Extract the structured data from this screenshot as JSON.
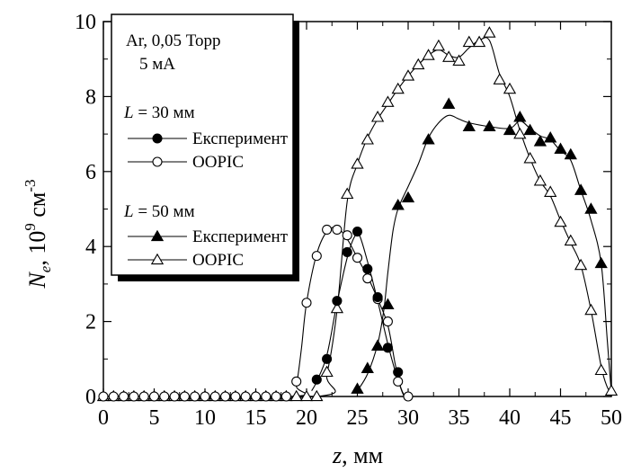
{
  "chart_data": {
    "type": "scatter",
    "xlabel": {
      "main": "z",
      "unit": ", мм"
    },
    "ylabel": {
      "main": "N",
      "sub": "e",
      "mid": ", 10",
      "sup1": "9",
      "unit": " см",
      "sup2": "-3"
    },
    "xlim": [
      0,
      50
    ],
    "ylim": [
      0,
      10
    ],
    "x_ticks": [
      0,
      5,
      10,
      15,
      20,
      25,
      30,
      35,
      40,
      45,
      50
    ],
    "y_ticks": [
      0,
      2,
      4,
      6,
      8,
      10
    ],
    "grid": false,
    "legend": {
      "placement": "top-left",
      "header_line1": "Ar, 0,05 Торр",
      "header_line2": "5 мА",
      "groups": [
        {
          "label_var": "L",
          "label_rest": " = 30 мм"
        },
        {
          "label_var": "L",
          "label_rest": " = 50 мм"
        }
      ],
      "entries": [
        {
          "name": "Експеримент",
          "marker": "circle",
          "filled": true,
          "group": 0
        },
        {
          "name": "OOPIC",
          "marker": "circle",
          "filled": false,
          "group": 0
        },
        {
          "name": "Експеримент",
          "marker": "triangle",
          "filled": true,
          "group": 1
        },
        {
          "name": "OOPIC",
          "marker": "triangle",
          "filled": false,
          "group": 1
        }
      ]
    },
    "series": [
      {
        "name": "Експеримент",
        "marker": "circle",
        "filled": true,
        "points": [
          [
            21,
            0.45
          ],
          [
            22,
            1.0
          ],
          [
            23,
            2.55
          ],
          [
            24,
            3.85
          ],
          [
            25,
            4.4
          ],
          [
            26,
            3.4
          ],
          [
            27,
            2.65
          ],
          [
            28,
            1.3
          ],
          [
            29,
            0.65
          ]
        ],
        "curve": [
          [
            20.5,
            0.15
          ],
          [
            21,
            0.4
          ],
          [
            22,
            1.1
          ],
          [
            23,
            2.5
          ],
          [
            24,
            3.7
          ],
          [
            24.7,
            4.25
          ],
          [
            25.2,
            4.3
          ],
          [
            26,
            3.6
          ],
          [
            27,
            2.55
          ],
          [
            28,
            1.4
          ],
          [
            28.7,
            0.7
          ],
          [
            29.3,
            0.2
          ],
          [
            29.6,
            0
          ]
        ]
      },
      {
        "name": "OOPIC",
        "marker": "circle",
        "filled": false,
        "points": [
          [
            0,
            0
          ],
          [
            1,
            0
          ],
          [
            2,
            0
          ],
          [
            3,
            0
          ],
          [
            4,
            0
          ],
          [
            5,
            0
          ],
          [
            6,
            0
          ],
          [
            7,
            0
          ],
          [
            8,
            0
          ],
          [
            9,
            0
          ],
          [
            10,
            0
          ],
          [
            11,
            0
          ],
          [
            12,
            0
          ],
          [
            13,
            0
          ],
          [
            14,
            0
          ],
          [
            15,
            0
          ],
          [
            16,
            0
          ],
          [
            17,
            0
          ],
          [
            18,
            0
          ],
          [
            19,
            0.4
          ],
          [
            20,
            2.5
          ],
          [
            21,
            3.75
          ],
          [
            22,
            4.45
          ],
          [
            23,
            4.45
          ],
          [
            24,
            4.3
          ],
          [
            25,
            3.7
          ],
          [
            26,
            3.15
          ],
          [
            27,
            2.6
          ],
          [
            28,
            2.0
          ],
          [
            29,
            0.4
          ],
          [
            30,
            0
          ]
        ],
        "curve": [
          [
            0,
            0
          ],
          [
            18.5,
            0
          ],
          [
            19,
            0.3
          ],
          [
            19.5,
            1.3
          ],
          [
            20,
            2.5
          ],
          [
            21,
            3.8
          ],
          [
            22,
            4.4
          ],
          [
            23,
            4.5
          ],
          [
            24,
            4.2
          ],
          [
            25,
            3.7
          ],
          [
            26,
            3.2
          ],
          [
            27,
            2.6
          ],
          [
            28,
            1.9
          ],
          [
            28.7,
            0.9
          ],
          [
            29.2,
            0.3
          ],
          [
            29.7,
            0
          ],
          [
            30,
            0
          ]
        ]
      },
      {
        "name": "Експеримент",
        "marker": "triangle",
        "filled": true,
        "points": [
          [
            25,
            0.2
          ],
          [
            26,
            0.75
          ],
          [
            27,
            1.35
          ],
          [
            28,
            2.45
          ],
          [
            29,
            5.1
          ],
          [
            30,
            5.3
          ],
          [
            32,
            6.85
          ],
          [
            34,
            7.8
          ],
          [
            36,
            7.2
          ],
          [
            38,
            7.2
          ],
          [
            40,
            7.1
          ],
          [
            41,
            7.45
          ],
          [
            42,
            7.1
          ],
          [
            43,
            6.8
          ],
          [
            44,
            6.9
          ],
          [
            45,
            6.6
          ],
          [
            46,
            6.45
          ],
          [
            47,
            5.5
          ],
          [
            48,
            5.0
          ],
          [
            49,
            3.55
          ]
        ],
        "curve": [
          [
            25,
            0.15
          ],
          [
            26,
            0.6
          ],
          [
            27,
            1.4
          ],
          [
            27.6,
            2.3
          ],
          [
            28,
            3.3
          ],
          [
            28.5,
            4.4
          ],
          [
            29,
            5.0
          ],
          [
            30,
            5.6
          ],
          [
            31,
            6.2
          ],
          [
            32,
            6.9
          ],
          [
            33,
            7.3
          ],
          [
            34,
            7.5
          ],
          [
            35,
            7.4
          ],
          [
            36,
            7.3
          ],
          [
            38,
            7.2
          ],
          [
            40,
            7.15
          ],
          [
            41,
            7.35
          ],
          [
            42,
            7.15
          ],
          [
            43,
            6.95
          ],
          [
            44,
            6.85
          ],
          [
            45,
            6.55
          ],
          [
            46,
            6.3
          ],
          [
            47,
            5.5
          ],
          [
            48,
            4.7
          ],
          [
            49,
            3.55
          ],
          [
            49.6,
            1.5
          ],
          [
            50,
            0.1
          ]
        ]
      },
      {
        "name": "OOPIC",
        "marker": "triangle",
        "filled": false,
        "points": [
          [
            0,
            0
          ],
          [
            1,
            0
          ],
          [
            2,
            0
          ],
          [
            3,
            0
          ],
          [
            4,
            0
          ],
          [
            5,
            0
          ],
          [
            6,
            0
          ],
          [
            7,
            0
          ],
          [
            8,
            0
          ],
          [
            9,
            0
          ],
          [
            10,
            0
          ],
          [
            11,
            0
          ],
          [
            12,
            0
          ],
          [
            13,
            0
          ],
          [
            14,
            0
          ],
          [
            15,
            0
          ],
          [
            16,
            0
          ],
          [
            17,
            0
          ],
          [
            18,
            0
          ],
          [
            19,
            0
          ],
          [
            20,
            0
          ],
          [
            21,
            0
          ],
          [
            22,
            0.65
          ],
          [
            23,
            2.35
          ],
          [
            24,
            5.4
          ],
          [
            25,
            6.2
          ],
          [
            26,
            6.85
          ],
          [
            27,
            7.45
          ],
          [
            28,
            7.85
          ],
          [
            29,
            8.2
          ],
          [
            30,
            8.55
          ],
          [
            31,
            8.85
          ],
          [
            32,
            9.1
          ],
          [
            33,
            9.35
          ],
          [
            34,
            9.05
          ],
          [
            35,
            8.95
          ],
          [
            36,
            9.45
          ],
          [
            37,
            9.45
          ],
          [
            38,
            9.7
          ],
          [
            39,
            8.45
          ],
          [
            40,
            8.2
          ],
          [
            41,
            7.0
          ],
          [
            42,
            6.35
          ],
          [
            43,
            5.75
          ],
          [
            44,
            5.45
          ],
          [
            45,
            4.65
          ],
          [
            46,
            4.15
          ],
          [
            47,
            3.5
          ],
          [
            48,
            2.3
          ],
          [
            49,
            0.7
          ],
          [
            50,
            0.15
          ]
        ],
        "curve": [
          [
            0,
            0
          ],
          [
            21,
            0
          ],
          [
            22,
            0.6
          ],
          [
            23,
            2.3
          ],
          [
            24,
            5.2
          ],
          [
            25,
            6.2
          ],
          [
            26,
            6.9
          ],
          [
            27,
            7.4
          ],
          [
            28,
            7.8
          ],
          [
            29,
            8.2
          ],
          [
            30,
            8.55
          ],
          [
            31,
            8.85
          ],
          [
            32,
            9.1
          ],
          [
            33,
            9.25
          ],
          [
            34,
            9.1
          ],
          [
            35,
            9.05
          ],
          [
            36,
            9.3
          ],
          [
            37,
            9.5
          ],
          [
            38,
            9.5
          ],
          [
            39,
            8.6
          ],
          [
            40,
            8.0
          ],
          [
            41,
            7.1
          ],
          [
            42,
            6.35
          ],
          [
            43,
            5.75
          ],
          [
            44,
            5.35
          ],
          [
            45,
            4.7
          ],
          [
            46,
            4.1
          ],
          [
            47,
            3.5
          ],
          [
            48,
            2.3
          ],
          [
            49,
            0.8
          ],
          [
            49.6,
            0.25
          ],
          [
            50,
            0.1
          ]
        ]
      }
    ]
  }
}
